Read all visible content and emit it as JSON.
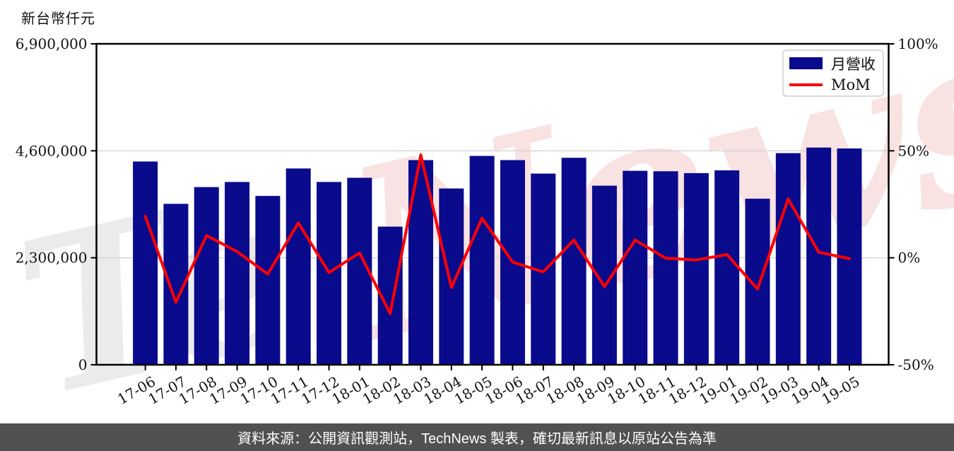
{
  "header": {
    "y_axis_unit_label": "新台幣仟元"
  },
  "footer": {
    "text": "資料來源：公開資訊觀測站，TechNews 製表，確切最新訊息以原站公告為準",
    "background": "#515151",
    "text_color": "#ffffff"
  },
  "watermark": {
    "left_word": "Te",
    "right_word": "News",
    "left_color": "#ebebeb",
    "right_color": "#f8e2e2"
  },
  "colors": {
    "bar": "#0a0a8c",
    "line": "#ff0000",
    "grid": "#d6d6d6",
    "spine": "#000000",
    "tick_text": "#111111",
    "legend_border": "#cfcfcf"
  },
  "legend": {
    "bar_label": "月營收",
    "line_label": "MoM",
    "position": "upper right"
  },
  "chart_data": {
    "type": "bar",
    "title": "",
    "xlabel": "",
    "ylabel_left": "新台幣仟元",
    "ylabel_right": "%",
    "grid": "horizontal",
    "categories": [
      "17-06",
      "17-07",
      "17-08",
      "17-09",
      "17-10",
      "17-11",
      "17-12",
      "18-01",
      "18-02",
      "18-03",
      "18-04",
      "18-05",
      "18-06",
      "18-07",
      "18-08",
      "18-09",
      "18-10",
      "18-11",
      "18-12",
      "19-01",
      "19-02",
      "19-03",
      "19-04",
      "19-05"
    ],
    "series": [
      {
        "name": "月營收",
        "type": "bar",
        "axis": "left",
        "values": [
          4370000,
          3460000,
          3820000,
          3930000,
          3630000,
          4220000,
          3930000,
          4020000,
          2970000,
          4400000,
          3790000,
          4490000,
          4400000,
          4110000,
          4450000,
          3850000,
          4170000,
          4160000,
          4120000,
          4180000,
          3570000,
          4550000,
          4670000,
          4650000
        ]
      },
      {
        "name": "MoM",
        "type": "line",
        "axis": "right",
        "values": [
          19.4,
          -20.8,
          10.4,
          2.9,
          -7.6,
          16.3,
          -6.9,
          2.3,
          -26.1,
          48.1,
          -13.9,
          18.5,
          -2.0,
          -6.6,
          8.3,
          -13.5,
          8.3,
          -0.2,
          -1.0,
          1.5,
          -14.6,
          27.5,
          2.6,
          -0.4
        ]
      }
    ],
    "left_axis": {
      "range": [
        0,
        6900000
      ],
      "ticks": [
        0,
        2300000,
        4600000,
        6900000
      ],
      "tick_labels": [
        "0",
        "2,300,000",
        "4,600,000",
        "6,900,000"
      ]
    },
    "right_axis": {
      "range": [
        -50,
        100
      ],
      "ticks": [
        -50,
        0,
        50,
        100
      ],
      "tick_labels": [
        "-50%",
        "0%",
        "50%",
        "100%"
      ]
    }
  }
}
